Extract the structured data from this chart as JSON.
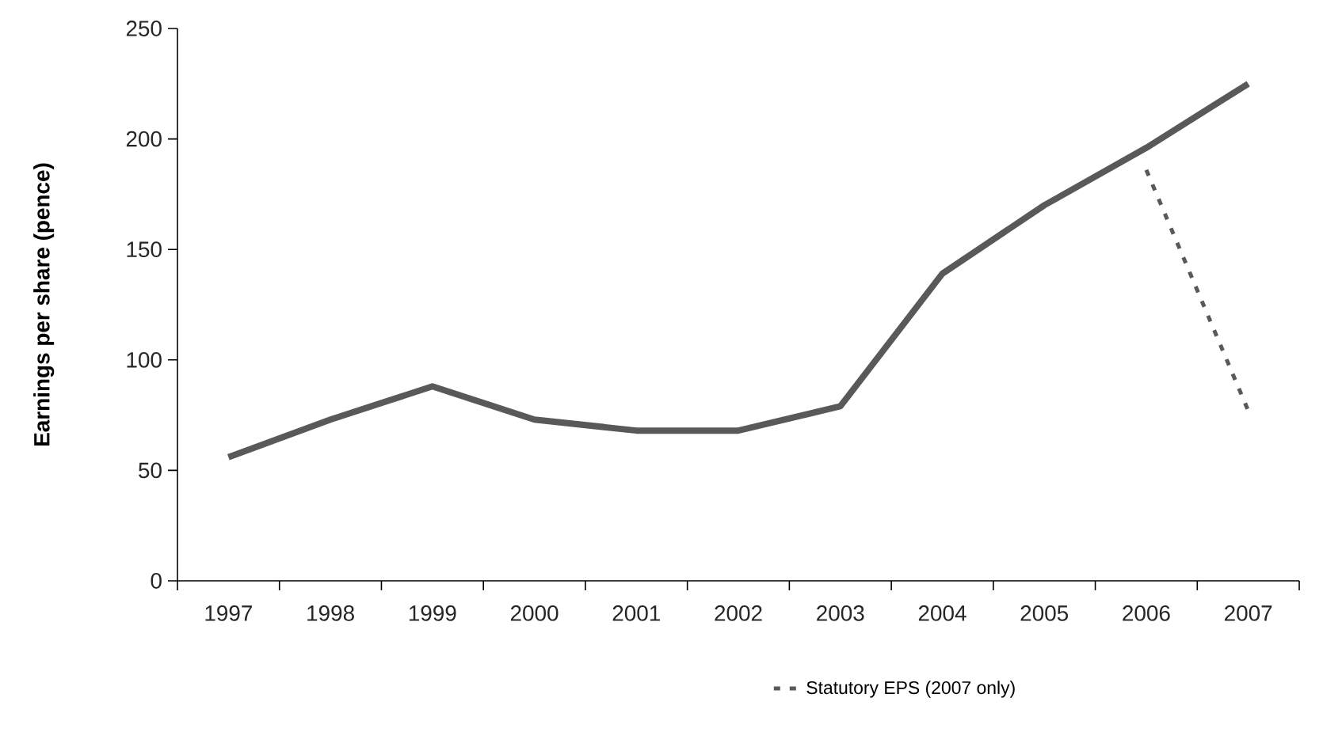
{
  "chart_data": {
    "type": "line",
    "ylabel": "Earnings per share (pence)",
    "categories": [
      "1997",
      "1998",
      "1999",
      "2000",
      "2001",
      "2002",
      "2003",
      "2004",
      "2005",
      "2006",
      "2007"
    ],
    "series": [
      {
        "color": "#595959",
        "line_style": "solid",
        "values": [
          56,
          73,
          88,
          73,
          68,
          68,
          79,
          139,
          170,
          196,
          225
        ]
      },
      {
        "name": "Statutory EPS (2007 only)",
        "color": "#595959",
        "line_style": "dashed",
        "values": [
          null,
          null,
          null,
          null,
          null,
          null,
          null,
          null,
          null,
          186,
          77
        ]
      }
    ],
    "ylim": [
      0,
      250
    ],
    "yticks": [
      0,
      50,
      100,
      150,
      200,
      250
    ],
    "grid": false,
    "legend": "bottom",
    "marker": "none"
  }
}
